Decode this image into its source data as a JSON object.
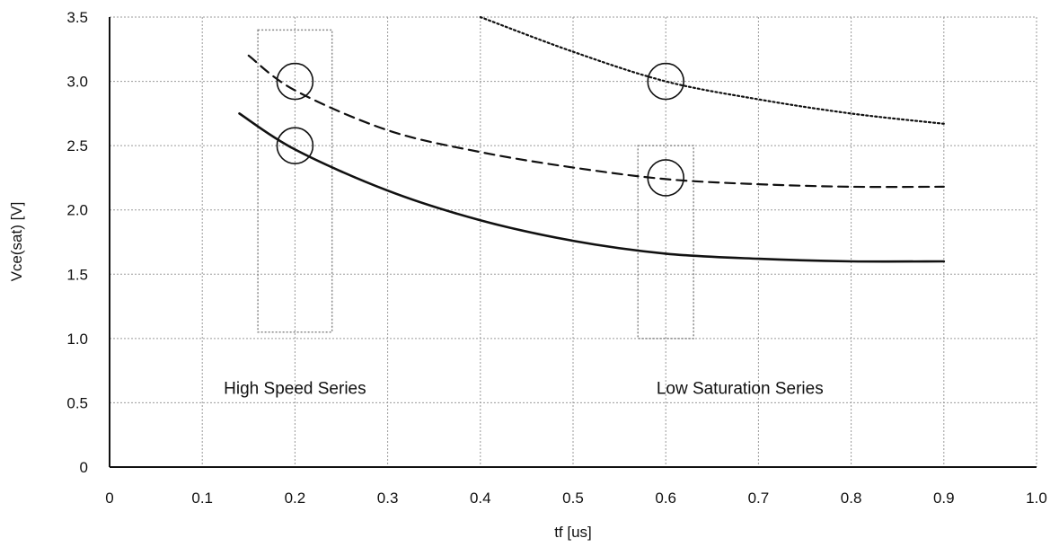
{
  "chart_data": {
    "type": "line",
    "xlabel": "tf [us]",
    "ylabel": "Vce(sat) [V]",
    "xlim": [
      0,
      1.0
    ],
    "ylim": [
      0,
      3.5
    ],
    "x_ticks": [
      "0",
      "0.1",
      "0.2",
      "0.3",
      "0.4",
      "0.5",
      "0.6",
      "0.7",
      "0.8",
      "0.9",
      "1.0"
    ],
    "y_ticks": [
      "0",
      "0.5",
      "1.0",
      "1.5",
      "2.0",
      "2.5",
      "3.0",
      "3.5"
    ],
    "grid": true,
    "series": [
      {
        "style": "solid",
        "x": [
          0.14,
          0.2,
          0.3,
          0.4,
          0.5,
          0.6,
          0.7,
          0.8,
          0.9
        ],
        "y": [
          2.75,
          2.47,
          2.15,
          1.92,
          1.76,
          1.66,
          1.62,
          1.6,
          1.6
        ]
      },
      {
        "style": "dashed",
        "x": [
          0.15,
          0.2,
          0.3,
          0.4,
          0.5,
          0.6,
          0.7,
          0.8,
          0.9
        ],
        "y": [
          3.2,
          2.93,
          2.62,
          2.45,
          2.33,
          2.24,
          2.2,
          2.18,
          2.18
        ]
      },
      {
        "style": "dotted",
        "x": [
          0.4,
          0.5,
          0.6,
          0.7,
          0.8,
          0.9
        ],
        "y": [
          3.5,
          3.23,
          3.0,
          2.86,
          2.75,
          2.67
        ]
      }
    ],
    "markers": [
      {
        "x": 0.2,
        "y": 3.0
      },
      {
        "x": 0.2,
        "y": 2.5
      },
      {
        "x": 0.6,
        "y": 3.0
      },
      {
        "x": 0.6,
        "y": 2.25
      }
    ],
    "regions": [
      {
        "x": [
          0.16,
          0.24
        ],
        "y": [
          1.05,
          3.4
        ]
      },
      {
        "x": [
          0.57,
          0.63
        ],
        "y": [
          1.0,
          2.5
        ]
      }
    ],
    "annotations": [
      {
        "text": "High Speed Series",
        "x": 0.2,
        "y": 0.62
      },
      {
        "text": "Low Saturation Series",
        "x": 0.68,
        "y": 0.62
      }
    ]
  }
}
